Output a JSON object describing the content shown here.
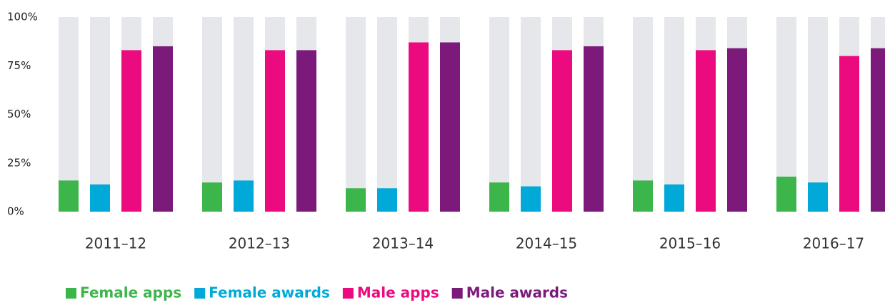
{
  "chart_data": {
    "type": "bar",
    "categories": [
      "2011–12",
      "2012–13",
      "2013–14",
      "2014–15",
      "2015–16",
      "2016–17"
    ],
    "series": [
      {
        "name": "Female apps",
        "color": "#3cb54a",
        "values": [
          16,
          15,
          12,
          15,
          16,
          18
        ]
      },
      {
        "name": "Female awards",
        "color": "#00a9d8",
        "values": [
          14,
          16,
          12,
          13,
          14,
          15
        ]
      },
      {
        "name": "Male apps",
        "color": "#ec0a7f",
        "values": [
          83,
          83,
          87,
          83,
          83,
          80
        ]
      },
      {
        "name": "Male awards",
        "color": "#7b1a7a",
        "values": [
          85,
          83,
          87,
          85,
          84,
          84
        ]
      }
    ],
    "ylim": [
      0,
      100
    ],
    "yticks": [
      {
        "value": 0,
        "label": "0%"
      },
      {
        "value": 25,
        "label": "25%"
      },
      {
        "value": 50,
        "label": "50%"
      },
      {
        "value": 75,
        "label": "75%"
      },
      {
        "value": 100,
        "label": "100%"
      }
    ],
    "track_color": "#e5e7ea",
    "legend": "bottom"
  }
}
